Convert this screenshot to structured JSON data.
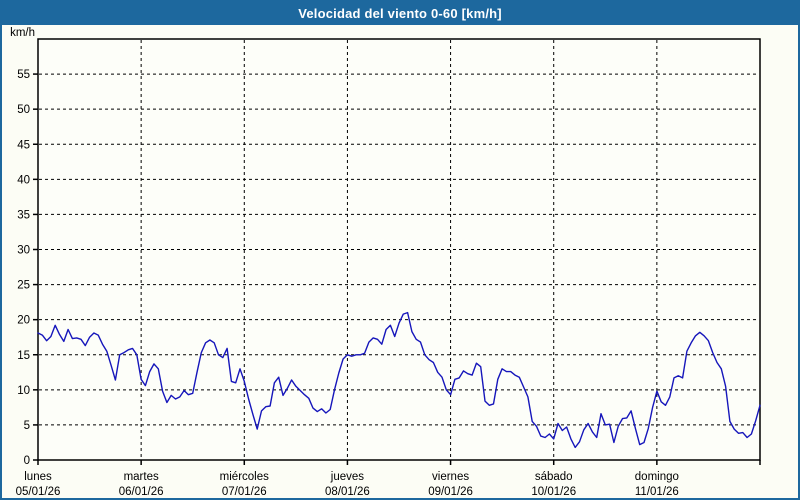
{
  "window": {
    "title": "Velocidad del viento 0-60 [km/h]"
  },
  "colors": {
    "titlebar": "#1d689e",
    "window_border": "#1d689e",
    "background": "#fcfdf5",
    "plot_background": "#fdfef9",
    "grid": "#000000",
    "line": "#1616bb"
  },
  "chart_data": {
    "type": "line",
    "title": "Velocidad del viento 0-60 [km/h]",
    "xlabel": "",
    "ylabel": "km/h",
    "ylim": [
      0,
      60
    ],
    "y_ticks": [
      0,
      5,
      10,
      15,
      20,
      25,
      30,
      35,
      40,
      45,
      50,
      55
    ],
    "grid": "dashed",
    "legend_position": "none",
    "x_days": [
      {
        "name": "lunes",
        "date": "05/01/26"
      },
      {
        "name": "martes",
        "date": "06/01/26"
      },
      {
        "name": "miércoles",
        "date": "07/01/26"
      },
      {
        "name": "jueves",
        "date": "08/01/26"
      },
      {
        "name": "viernes",
        "date": "09/01/26"
      },
      {
        "name": "sábado",
        "date": "10/01/26"
      },
      {
        "name": "domingo",
        "date": "11/01/26"
      }
    ],
    "points_per_day": 24,
    "series": [
      {
        "name": "wind-speed-kmh",
        "color": "#1616bb",
        "values": [
          18.1,
          17.8,
          17.0,
          17.6,
          19.2,
          17.9,
          16.9,
          18.6,
          17.3,
          17.4,
          17.2,
          16.3,
          17.5,
          18.1,
          17.8,
          16.5,
          15.5,
          13.5,
          11.4,
          15.0,
          15.3,
          15.7,
          15.9,
          15.0,
          11.5,
          10.6,
          12.6,
          13.7,
          13.0,
          9.8,
          8.2,
          9.2,
          8.7,
          9.0,
          9.9,
          9.3,
          9.5,
          12.5,
          15.3,
          16.7,
          17.1,
          16.7,
          15.0,
          14.6,
          15.9,
          11.2,
          11.0,
          13.0,
          11.2,
          8.7,
          6.5,
          4.4,
          7.0,
          7.6,
          7.7,
          11.0,
          11.8,
          9.2,
          10.2,
          11.4,
          10.5,
          9.9,
          9.3,
          8.8,
          7.4,
          6.9,
          7.3,
          6.7,
          7.2,
          10.0,
          12.4,
          14.4,
          15.0,
          14.8,
          15.0,
          15.0,
          15.2,
          16.8,
          17.4,
          17.2,
          16.5,
          18.6,
          19.2,
          17.6,
          19.5,
          20.8,
          21.0,
          18.3,
          17.2,
          16.8,
          15.0,
          14.3,
          13.9,
          12.5,
          11.8,
          10.0,
          9.3,
          11.5,
          11.7,
          12.7,
          12.3,
          12.1,
          13.8,
          13.3,
          8.4,
          7.8,
          8.0,
          11.5,
          13.0,
          12.6,
          12.6,
          12.1,
          11.8,
          10.4,
          9.0,
          5.5,
          4.8,
          3.4,
          3.2,
          3.7,
          3.0,
          5.2,
          4.2,
          4.7,
          3.0,
          1.8,
          2.6,
          4.3,
          5.2,
          4.0,
          3.2,
          6.6,
          5.0,
          5.1,
          2.5,
          4.8,
          5.9,
          6.0,
          7.0,
          4.5,
          2.2,
          2.5,
          4.5,
          7.5,
          9.8,
          8.3,
          7.8,
          9.0,
          11.7,
          12.0,
          11.7,
          15.5,
          16.7,
          17.7,
          18.2,
          17.7,
          17.0,
          15.3,
          13.9,
          13.0,
          10.5,
          5.5,
          4.4,
          3.8,
          3.9,
          3.2,
          3.7,
          5.6,
          7.8
        ]
      }
    ]
  }
}
